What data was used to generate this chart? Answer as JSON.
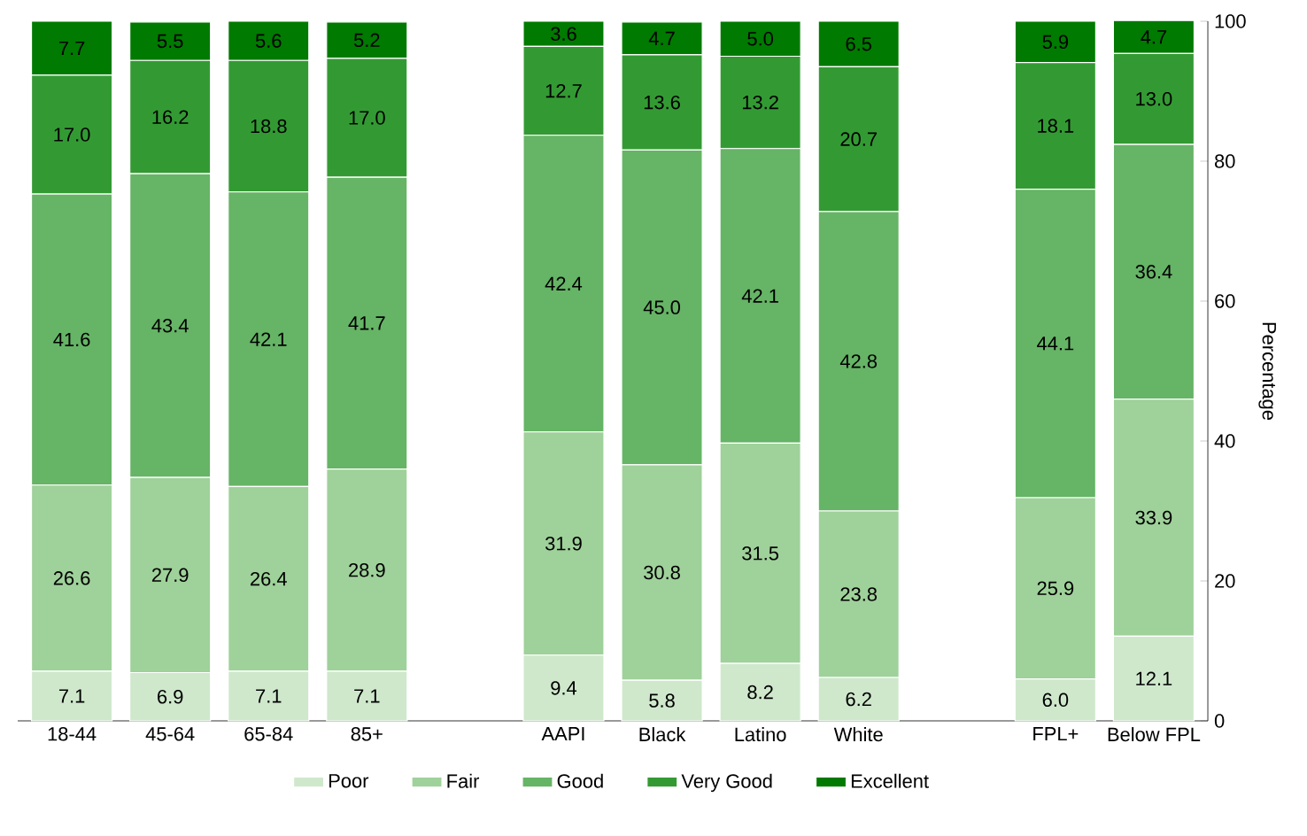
{
  "chart_data": {
    "type": "bar",
    "stacked": true,
    "categories": [
      "18-44",
      "45-64",
      "65-84",
      "85+",
      null,
      "AAPI",
      "Black",
      "Latino",
      "White",
      null,
      "FPL+",
      "Below FPL"
    ],
    "series": [
      {
        "name": "Poor",
        "color": "#cfe8cc",
        "values": [
          7.1,
          6.9,
          7.1,
          7.1,
          null,
          9.4,
          5.8,
          8.2,
          6.2,
          null,
          6.0,
          12.1
        ],
        "value_labels": [
          "7.1",
          "6.9",
          "7.1",
          "7.1",
          null,
          "9.4",
          "5.8",
          "8.2",
          "6.2",
          null,
          "6.0",
          "12.1"
        ]
      },
      {
        "name": "Fair",
        "color": "#9fd19a",
        "values": [
          26.6,
          27.9,
          26.4,
          28.9,
          null,
          31.9,
          30.8,
          31.5,
          23.8,
          null,
          25.9,
          33.9
        ],
        "value_labels": [
          "26.6",
          "27.9",
          "26.4",
          "28.9",
          null,
          "31.9",
          "30.8",
          "31.5",
          "23.8",
          null,
          "25.9",
          "33.9"
        ]
      },
      {
        "name": "Good",
        "color": "#66b466",
        "values": [
          41.6,
          43.4,
          42.1,
          41.7,
          null,
          42.4,
          45.0,
          42.1,
          42.8,
          null,
          44.1,
          36.4
        ],
        "value_labels": [
          "41.6",
          "43.4",
          "42.1",
          "41.7",
          null,
          "42.4",
          "45.0",
          "42.1",
          "42.8",
          null,
          "44.1",
          "36.4"
        ]
      },
      {
        "name": "Very Good",
        "color": "#339a33",
        "values": [
          17.0,
          16.2,
          18.8,
          17.0,
          null,
          12.7,
          13.6,
          13.2,
          20.7,
          null,
          18.1,
          13.0
        ],
        "value_labels": [
          "17.0",
          "16.2",
          "18.8",
          "17.0",
          null,
          "12.7",
          "13.6",
          "13.2",
          "20.7",
          null,
          "18.1",
          "13.0"
        ]
      },
      {
        "name": "Excellent",
        "color": "#007a00",
        "values": [
          7.7,
          5.5,
          5.6,
          5.2,
          null,
          3.6,
          4.7,
          5.0,
          6.5,
          null,
          5.9,
          4.7
        ],
        "value_labels": [
          "7.7",
          "5.5",
          "5.6",
          "5.2",
          null,
          "3.6",
          "4.7",
          "5.0",
          "6.5",
          null,
          "5.9",
          "4.7"
        ]
      }
    ],
    "ylabel": "Percentage",
    "ylim": [
      0,
      100
    ],
    "yticks": [
      0,
      20,
      40,
      60,
      80,
      100
    ],
    "legend": "bottom"
  }
}
